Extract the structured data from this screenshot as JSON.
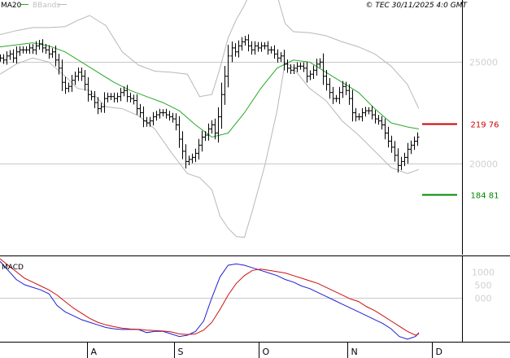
{
  "header": {
    "legend_ma": "MA20",
    "legend_bb": "BBands",
    "copyright": "© TEC 30/11/2025 4:0 GMT"
  },
  "colors": {
    "ma": "#2aa82a",
    "bbands": "#b8b8b8",
    "price": "#000000",
    "macd": "#2020d0",
    "signal": "#cc1010",
    "resistance": "#cc0000",
    "support": "#008800",
    "grid": "#c8c8c8",
    "axis_text": "#d0d0d0"
  },
  "chart_data": [
    {
      "type": "ohlc",
      "title": "",
      "x_ticks": [
        "A",
        "S",
        "O",
        "N",
        "D"
      ],
      "y_ticks": [
        20000,
        25000
      ],
      "ylim": [
        15500,
        27500
      ],
      "grid": true,
      "legend_placement": "top-left",
      "levels": [
        {
          "name": "resistance",
          "value": 21976,
          "label": "219 76"
        },
        {
          "name": "support",
          "value": 18481,
          "label": "184 81"
        }
      ],
      "series": [
        {
          "name": "MA20",
          "type": "line",
          "x": [
            0,
            20,
            40,
            60,
            80,
            100,
            120,
            140,
            160,
            180,
            200,
            220,
            240,
            260,
            280,
            300,
            320,
            340,
            360,
            380,
            400,
            420,
            440,
            460,
            480,
            500,
            514
          ],
          "values": [
            25750,
            25850,
            25950,
            25800,
            25500,
            25000,
            24500,
            24000,
            23600,
            23300,
            23000,
            22600,
            21900,
            21300,
            21500,
            22500,
            23700,
            24700,
            25100,
            25000,
            24500,
            24000,
            23500,
            22700,
            22000,
            21800,
            21700
          ]
        },
        {
          "name": "BBands",
          "type": "band",
          "x": [
            0,
            20,
            40,
            60,
            80,
            95,
            110,
            130,
            150,
            170,
            190,
            210,
            230,
            245,
            260,
            270,
            280,
            290,
            300,
            310,
            325,
            340,
            350,
            360,
            380,
            400,
            420,
            440,
            460,
            480,
            500,
            514
          ],
          "upper": [
            26350,
            26550,
            26700,
            26700,
            26750,
            27050,
            27300,
            26800,
            25500,
            24850,
            24550,
            24500,
            24400,
            23300,
            23400,
            24700,
            26200,
            27100,
            27800,
            28700,
            28900,
            28300,
            26900,
            26500,
            26450,
            26300,
            26000,
            25750,
            25400,
            24800,
            23900,
            22700
          ],
          "lower": [
            24400,
            24900,
            25200,
            25000,
            24300,
            23700,
            23600,
            22800,
            22700,
            22350,
            21700,
            20550,
            19500,
            19300,
            18700,
            17400,
            16800,
            16400,
            16350,
            17700,
            19900,
            22600,
            25000,
            24700,
            23700,
            23100,
            22100,
            21400,
            20600,
            19800,
            19500,
            19700
          ]
        },
        {
          "name": "Price",
          "type": "ohlc",
          "x": [
            0,
            4,
            8,
            12,
            16,
            20,
            24,
            28,
            32,
            36,
            40,
            44,
            48,
            52,
            56,
            60,
            64,
            68,
            72,
            76,
            80,
            84,
            88,
            92,
            96,
            100,
            104,
            108,
            112,
            116,
            120,
            124,
            128,
            132,
            136,
            140,
            144,
            148,
            152,
            156,
            160,
            164,
            168,
            172,
            176,
            180,
            184,
            188,
            192,
            196,
            200,
            204,
            208,
            212,
            216,
            220,
            224,
            228,
            232,
            236,
            240,
            244,
            248,
            252,
            256,
            260,
            264,
            268,
            272,
            276,
            280,
            284,
            288,
            292,
            296,
            300,
            304,
            308,
            312,
            316,
            320,
            324,
            328,
            332,
            336,
            340,
            344,
            348,
            352,
            356,
            360,
            364,
            368,
            372,
            376,
            380,
            384,
            388,
            392,
            396,
            400,
            404,
            408,
            412,
            416,
            420,
            424,
            428,
            432,
            436,
            440,
            444,
            448,
            452,
            456,
            460,
            464,
            468,
            472,
            476,
            480,
            484,
            488,
            492,
            496,
            500,
            504,
            508,
            512
          ],
          "values": [
            25200,
            25100,
            25300,
            25400,
            25200,
            25500,
            25600,
            25600,
            25600,
            25700,
            25600,
            25800,
            25900,
            25700,
            25600,
            25400,
            25500,
            25100,
            24700,
            24000,
            23700,
            23800,
            24100,
            24300,
            24500,
            24300,
            23900,
            23400,
            23300,
            23000,
            22700,
            22800,
            23200,
            23300,
            23300,
            23200,
            23300,
            23500,
            23600,
            23300,
            23200,
            23100,
            22700,
            22500,
            22100,
            22000,
            22100,
            22300,
            22400,
            22500,
            22500,
            22400,
            22300,
            22200,
            21900,
            21200,
            20600,
            20100,
            20200,
            20300,
            20500,
            20900,
            21300,
            21400,
            21700,
            21900,
            21500,
            22300,
            23400,
            24300,
            25300,
            25700,
            25500,
            25800,
            26000,
            26100,
            25800,
            25600,
            25800,
            25700,
            25800,
            25800,
            25600,
            25600,
            25400,
            25200,
            25300,
            24900,
            24700,
            24600,
            24700,
            24800,
            24800,
            24700,
            24300,
            24400,
            24600,
            24900,
            25000,
            24300,
            23900,
            23500,
            23200,
            23200,
            23500,
            23800,
            23600,
            23200,
            22500,
            22300,
            22300,
            22500,
            22600,
            22600,
            22400,
            22200,
            22100,
            21900,
            21500,
            21100,
            20800,
            20400,
            19900,
            20100,
            20300,
            20700,
            20900,
            21100,
            21300
          ]
        }
      ]
    },
    {
      "type": "line",
      "title": "MACD",
      "y_ticks": [
        1000,
        500,
        0
      ],
      "y_tick_labels": [
        "1000",
        "500",
        "000"
      ],
      "ylim": [
        -1700,
        1500
      ],
      "grid": true,
      "series": [
        {
          "name": "MACD",
          "type": "line",
          "x": [
            0,
            10,
            20,
            30,
            40,
            50,
            60,
            70,
            80,
            90,
            100,
            110,
            120,
            130,
            140,
            150,
            160,
            170,
            180,
            190,
            200,
            210,
            220,
            230,
            240,
            250,
            260,
            270,
            280,
            290,
            300,
            310,
            320,
            330,
            340,
            350,
            360,
            370,
            380,
            390,
            400,
            410,
            420,
            430,
            440,
            450,
            460,
            470,
            480,
            490,
            500,
            510,
            514
          ],
          "values": [
            1400,
            1050,
            700,
            500,
            400,
            300,
            150,
            -300,
            -550,
            -700,
            -850,
            -950,
            -1050,
            -1150,
            -1200,
            -1230,
            -1220,
            -1230,
            -1350,
            -1300,
            -1300,
            -1400,
            -1500,
            -1450,
            -1300,
            -900,
            0,
            800,
            1250,
            1300,
            1250,
            1150,
            1050,
            950,
            850,
            700,
            600,
            450,
            350,
            200,
            50,
            -100,
            -250,
            -400,
            -550,
            -700,
            -850,
            -1000,
            -1200,
            -1500,
            -1600,
            -1500,
            -1350
          ]
        },
        {
          "name": "Signal",
          "type": "line",
          "x": [
            0,
            10,
            20,
            30,
            40,
            50,
            60,
            70,
            80,
            90,
            100,
            110,
            120,
            130,
            140,
            150,
            160,
            170,
            180,
            190,
            200,
            210,
            220,
            230,
            240,
            250,
            260,
            270,
            280,
            290,
            300,
            310,
            320,
            330,
            340,
            350,
            360,
            370,
            380,
            390,
            400,
            410,
            420,
            430,
            440,
            450,
            460,
            470,
            480,
            490,
            500,
            510,
            514
          ],
          "values": [
            1500,
            1250,
            1000,
            750,
            600,
            450,
            300,
            100,
            -150,
            -400,
            -600,
            -800,
            -950,
            -1050,
            -1120,
            -1180,
            -1210,
            -1220,
            -1250,
            -1270,
            -1290,
            -1320,
            -1400,
            -1420,
            -1400,
            -1250,
            -950,
            -450,
            100,
            550,
            850,
            1050,
            1100,
            1050,
            1000,
            950,
            850,
            750,
            650,
            550,
            400,
            250,
            100,
            -50,
            -150,
            -350,
            -500,
            -700,
            -900,
            -1100,
            -1300,
            -1450,
            -1400
          ]
        }
      ]
    }
  ]
}
